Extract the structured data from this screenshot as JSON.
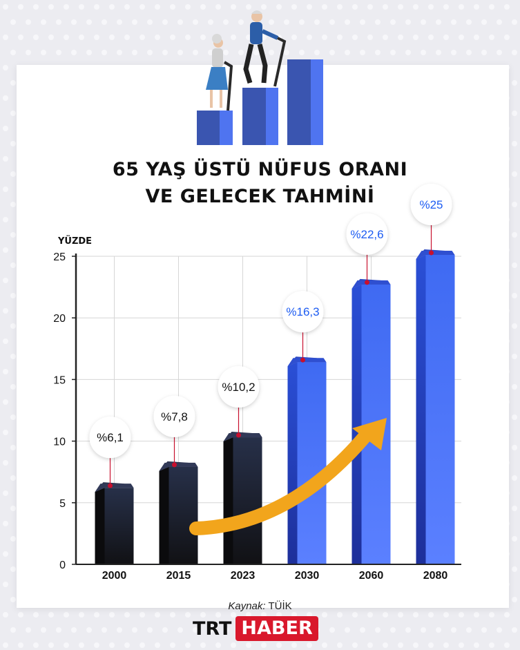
{
  "title_lines": [
    "65 YAŞ ÜSTÜ NÜFUS ORANI",
    "VE GELECEK TAHMİNİ"
  ],
  "source": {
    "label": "Kaynak:",
    "value": "TÜİK"
  },
  "logo": {
    "part1": "TRT",
    "part2": "HABER"
  },
  "colors": {
    "historical": "#1b1b20",
    "forecast": "#4a73f5",
    "forecast_label": "#1d5cf2",
    "marker": "#c8102e",
    "arrow": "#f2a51c",
    "logo_red": "#d9182c"
  },
  "icons": [
    "elderly-couple-climbing-steps-illustration",
    "growth-arrow"
  ],
  "chart_data": {
    "type": "bar",
    "ylabel": "YÜZDE",
    "ylim": [
      0,
      25
    ],
    "yticks": [
      0,
      5,
      10,
      15,
      20,
      25
    ],
    "grid": true,
    "categories": [
      "2000",
      "2015",
      "2023",
      "2030",
      "2060",
      "2080"
    ],
    "values": [
      6.1,
      7.8,
      10.2,
      16.3,
      22.6,
      25
    ],
    "data_labels": [
      "%6,1",
      "%7,8",
      "%10,2",
      "%16,3",
      "%22,6",
      "%25"
    ],
    "forecast_from_index": 3
  }
}
